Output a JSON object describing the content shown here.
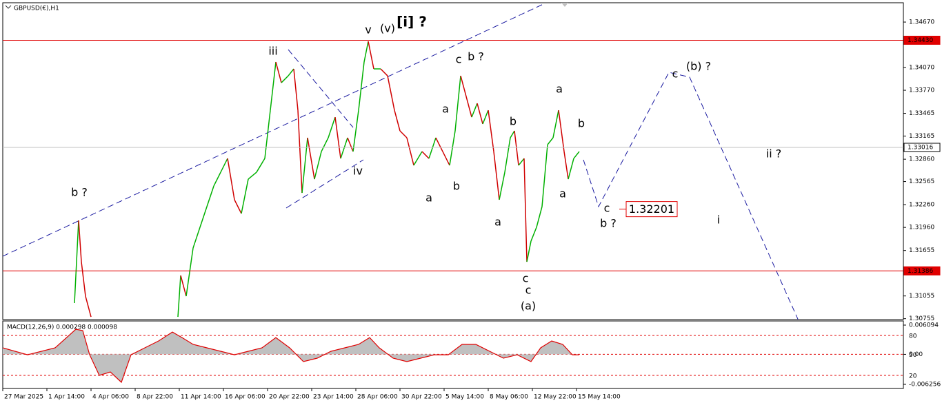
{
  "chart_data": [
    {
      "type": "line",
      "title": "GBPUSD(€),H1",
      "color_up": "#00b000",
      "color_down": "#d00000",
      "xlim": [
        0,
        326.5
      ],
      "xticks": [
        {
          "value": 0,
          "label": "27 Mar 2025"
        },
        {
          "value": 16,
          "label": "1 Apr 14:00"
        },
        {
          "value": 32,
          "label": "4 Apr 06:00"
        },
        {
          "value": 48,
          "label": "8 Apr 22:00"
        },
        {
          "value": 64,
          "label": "11 Apr 14:00"
        },
        {
          "value": 80,
          "label": "16 Apr 06:00"
        },
        {
          "value": 96,
          "label": "20 Apr 22:00"
        },
        {
          "value": 112,
          "label": "23 Apr 14:00"
        },
        {
          "value": 128,
          "label": "28 Apr 06:00"
        },
        {
          "value": 144,
          "label": "30 Apr 22:00"
        },
        {
          "value": 160,
          "label": "5 May 14:00"
        },
        {
          "value": 176,
          "label": "8 May 06:00"
        },
        {
          "value": 192,
          "label": "12 May 22:00"
        },
        {
          "value": 208,
          "label": "15 May 14:00"
        }
      ],
      "ylim": [
        1.30743,
        1.34925
      ],
      "yticks": [
        {
          "value": 1.3467,
          "label": "1.34670"
        },
        {
          "value": 1.3407,
          "label": "1.34070"
        },
        {
          "value": 1.3377,
          "label": "1.33770"
        },
        1.33465,
        {
          "value": 1.33165,
          "label": "1.33165"
        },
        {
          "value": 1.3286,
          "label": "1.32860"
        },
        1.32565,
        {
          "value": 1.3226,
          "label": "1.32260"
        },
        {
          "value": 1.3196,
          "label": "1.31960"
        },
        1.31655,
        1.31055,
        1.30755
      ],
      "x": [
        26,
        27.5,
        28.5,
        30,
        32,
        40,
        63.5,
        64.5,
        66.5,
        69,
        71.5,
        74,
        76.5,
        79,
        81.5,
        84,
        86.5,
        89,
        92,
        95,
        97,
        99,
        101,
        103.5,
        105.5,
        107,
        108.5,
        110.5,
        113,
        115.5,
        118,
        120.5,
        122.5,
        125,
        127,
        129,
        131,
        132.5,
        134.5,
        137,
        139.5,
        142,
        144,
        146.5,
        149,
        152,
        154.5,
        157,
        159.5,
        162,
        164,
        166,
        168,
        170,
        172,
        174,
        176,
        178,
        180,
        182,
        184,
        185.5,
        187,
        189,
        190,
        191.5,
        193.5,
        195.5,
        197.5,
        199.5,
        201.5,
        203.5,
        205,
        207,
        209
      ],
      "values": [
        1.30961,
        1.32052,
        1.31506,
        1.31052,
        1.30779,
        null,
        1.30779,
        1.31325,
        1.31052,
        1.31688,
        1.31961,
        1.32234,
        1.32506,
        1.32688,
        1.3287,
        1.32325,
        1.32143,
        1.32597,
        1.32688,
        1.3287,
        1.33506,
        1.34143,
        1.3387,
        1.33961,
        1.34052,
        1.33506,
        1.32415,
        1.33143,
        1.32597,
        1.32961,
        1.33143,
        1.33415,
        1.3287,
        1.33143,
        1.32961,
        1.33506,
        1.34143,
        1.34415,
        1.34052,
        1.34052,
        1.33961,
        1.33506,
        1.33234,
        1.33143,
        1.32779,
        1.32961,
        1.3287,
        1.33143,
        1.32961,
        1.32779,
        1.33234,
        1.33961,
        1.33688,
        1.33415,
        1.33597,
        1.33325,
        1.33506,
        1.32961,
        1.32325,
        1.32688,
        1.33143,
        1.33234,
        1.32779,
        1.3287,
        1.31506,
        1.31779,
        1.31961,
        1.32234,
        1.33052,
        1.33143,
        1.33506,
        1.32961,
        1.32597,
        1.3287,
        1.32961
      ],
      "hlines": [
        {
          "value": 1.3443,
          "label": "1.34430",
          "color": "#e00000"
        },
        {
          "value": 1.33016,
          "label": "1.33016",
          "color": "#c0c0c0"
        },
        {
          "value": 1.31386,
          "label": "1.31386",
          "color": "#e00000"
        }
      ],
      "target": 1.32201,
      "annotations": [
        {
          "text": "b ?",
          "color": "#e020e0"
        },
        {
          "text": "iii",
          "color": "#e020e0"
        },
        {
          "text": "v",
          "color": "#e020e0"
        },
        {
          "text": "(v)",
          "color": "#1a1aa0"
        },
        {
          "text": "[i] ?",
          "color": "#1a7a1a"
        },
        {
          "text": "iv",
          "color": "#e020e0"
        },
        {
          "text": "c",
          "color": "#000000"
        },
        {
          "text": "b ?",
          "color": "#e020e0"
        },
        {
          "text": "a",
          "color": "#000000"
        },
        {
          "text": "b",
          "color": "#000000"
        },
        {
          "text": "a",
          "color": "#e020e0"
        },
        {
          "text": "b",
          "color": "#000000"
        },
        {
          "text": "a",
          "color": "#000000"
        },
        {
          "text": "c",
          "color": "#000000"
        },
        {
          "text": "c",
          "color": "#e020e0"
        },
        {
          "text": "(a)",
          "color": "#1a1aa0"
        },
        {
          "text": "a",
          "color": "#e020e0"
        },
        {
          "text": "b",
          "color": "#000000"
        },
        {
          "text": "a",
          "color": "#000000"
        },
        {
          "text": "c",
          "color": "#000000"
        },
        {
          "text": "b ?",
          "color": "#e020e0"
        },
        {
          "text": "c",
          "color": "#e020e0"
        },
        {
          "text": "(b) ?",
          "color": "#1a1aa0"
        },
        {
          "text": "ii ?",
          "color": "#e020e0"
        },
        {
          "text": "i",
          "color": "#e020e0"
        }
      ]
    },
    {
      "type": "area",
      "title": "MACD(12,26,9) 0.000298 0.000098",
      "color": "#c0c0c0",
      "line_color": "#e00000",
      "ylim": [
        -0.007118,
        0.006956
      ],
      "yticks": [
        {
          "value": 0.006094,
          "label": "0.006094"
        },
        {
          "value": 0,
          "label": "0.00"
        },
        {
          "value": -0.006256,
          "label": "-0.006256"
        }
      ],
      "levels": [
        {
          "value": 0.003935,
          "label": "80"
        },
        {
          "value": 0,
          "label": "50"
        },
        {
          "value": -0.004394,
          "label": "20"
        }
      ],
      "x": [
        0,
        9,
        19,
        26.5,
        29,
        31.5,
        35,
        39,
        43,
        46.5,
        51.5,
        56.5,
        61.5,
        65,
        69,
        74,
        79,
        84,
        89,
        94,
        99,
        104,
        109,
        114,
        119,
        124,
        129,
        133,
        136.5,
        141.5,
        146.5,
        151.5,
        156.5,
        161.5,
        166.5,
        171.5,
        176.5,
        181.5,
        186.5,
        191.5,
        195,
        199,
        203,
        206.5,
        209
      ],
      "values": [
        0.00135,
        -9e-05,
        0.00135,
        0.00523,
        0.00494,
        -9e-05,
        -0.00439,
        -0.00367,
        -0.00583,
        -9e-05,
        0.00135,
        0.00279,
        0.00465,
        0.0035,
        0.00207,
        0.00135,
        0.00063,
        -9e-05,
        0.00063,
        0.00135,
        0.0035,
        0.00135,
        -0.00152,
        -0.0008,
        0.00063,
        0.00135,
        0.00207,
        0.0035,
        0.00135,
        -0.0008,
        -0.00152,
        -0.0008,
        -9e-05,
        -9e-05,
        0.00207,
        0.00207,
        0.00063,
        -0.0008,
        -9e-05,
        -0.00152,
        0.00135,
        0.00279,
        0.00207,
        -9e-05,
        -9e-05
      ]
    }
  ]
}
